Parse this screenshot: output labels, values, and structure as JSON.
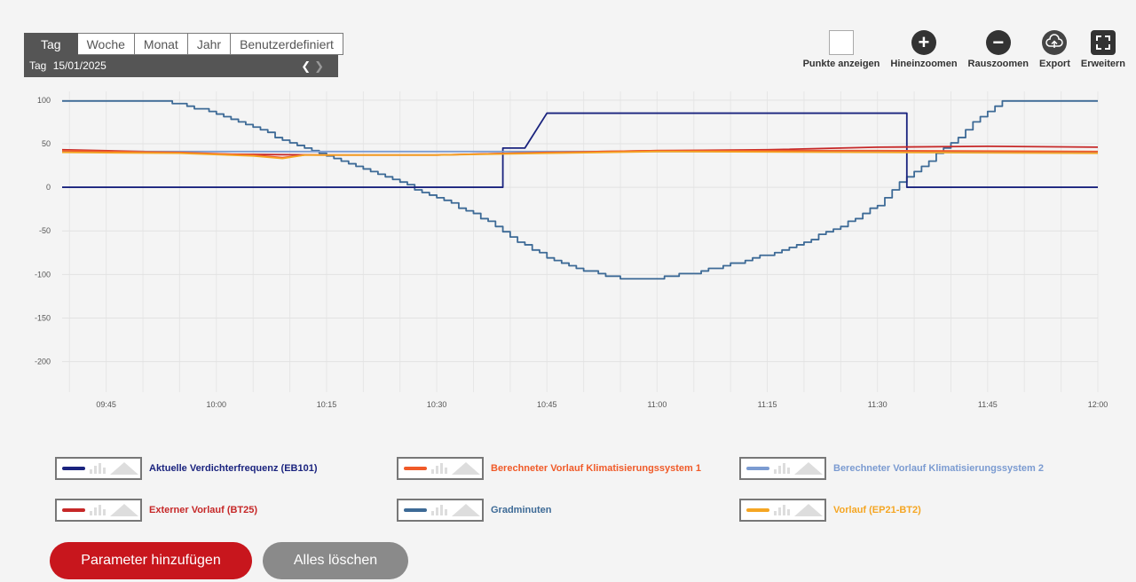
{
  "period": {
    "tabs": [
      {
        "label": "Tag",
        "active": true
      },
      {
        "label": "Woche",
        "active": false
      },
      {
        "label": "Monat",
        "active": false
      },
      {
        "label": "Jahr",
        "active": false
      },
      {
        "label": "Benutzerdefiniert",
        "active": false
      }
    ],
    "range_label": "Tag",
    "range_date": "15/01/2025"
  },
  "toolbar": {
    "show_points": "Punkte anzeigen",
    "zoom_in": "Hineinzoomen",
    "zoom_out": "Rauszoomen",
    "export": "Export",
    "expand": "Erweitern"
  },
  "legend": [
    {
      "label": "Aktuelle Verdichterfrequenz (EB101)",
      "color": "#1a237e"
    },
    {
      "label": "Berechneter Vorlauf Klimatisierungssystem 1",
      "color": "#f05a28"
    },
    {
      "label": "Berechneter Vorlauf Klimatisierungssystem 2",
      "color": "#7b9bd1"
    },
    {
      "label": "Externer Vorlauf (BT25)",
      "color": "#c62828"
    },
    {
      "label": "Gradminuten",
      "color": "#3d6a96"
    },
    {
      "label": "Vorlauf (EP21-BT2)",
      "color": "#f5a623"
    }
  ],
  "buttons": {
    "add": "Parameter hinzufügen",
    "clear": "Alles löschen"
  },
  "chart_data": {
    "type": "line",
    "title": "",
    "xlabel": "",
    "ylabel": "",
    "xlim": [
      "09:39",
      "12:00"
    ],
    "ylim": [
      -235,
      110
    ],
    "y_ticks": [
      100,
      50,
      0,
      -50,
      -100,
      -150,
      -200
    ],
    "x_ticks": [
      "09:45",
      "10:00",
      "10:15",
      "10:30",
      "10:45",
      "11:00",
      "11:15",
      "11:30",
      "11:45",
      "12:00"
    ],
    "grid": true,
    "series": [
      {
        "name": "Gradminuten",
        "color": "#3d6a96",
        "step": true,
        "points": [
          [
            "09:39",
            100
          ],
          [
            "09:51",
            100
          ],
          [
            "09:55",
            95
          ],
          [
            "10:00",
            85
          ],
          [
            "10:05",
            70
          ],
          [
            "10:10",
            50
          ],
          [
            "10:15",
            35
          ],
          [
            "10:20",
            20
          ],
          [
            "10:25",
            5
          ],
          [
            "10:30",
            -12
          ],
          [
            "10:35",
            -30
          ],
          [
            "10:38",
            -45
          ],
          [
            "10:40",
            -58
          ],
          [
            "10:45",
            -80
          ],
          [
            "10:50",
            -95
          ],
          [
            "10:55",
            -105
          ],
          [
            "11:00",
            -104
          ],
          [
            "11:05",
            -98
          ],
          [
            "11:10",
            -88
          ],
          [
            "11:15",
            -77
          ],
          [
            "11:20",
            -62
          ],
          [
            "11:25",
            -45
          ],
          [
            "11:30",
            -20
          ],
          [
            "11:33",
            5
          ],
          [
            "11:36",
            25
          ],
          [
            "11:40",
            50
          ],
          [
            "11:43",
            75
          ],
          [
            "11:47",
            100
          ],
          [
            "12:00",
            100
          ]
        ]
      },
      {
        "name": "Aktuelle Verdichterfrequenz (EB101)",
        "color": "#1a237e",
        "step": false,
        "points": [
          [
            "09:39",
            0
          ],
          [
            "10:39",
            0
          ],
          [
            "10:39",
            45
          ],
          [
            "10:42",
            45
          ],
          [
            "10:45",
            85
          ],
          [
            "11:34",
            85
          ],
          [
            "11:34",
            0
          ],
          [
            "12:00",
            0
          ]
        ]
      },
      {
        "name": "Externer Vorlauf (BT25)",
        "color": "#c62828",
        "step": false,
        "points": [
          [
            "09:39",
            43
          ],
          [
            "09:50",
            41
          ],
          [
            "10:00",
            38
          ],
          [
            "10:15",
            37
          ],
          [
            "10:30",
            37
          ],
          [
            "10:45",
            40
          ],
          [
            "11:00",
            42
          ],
          [
            "11:15",
            43
          ],
          [
            "11:30",
            46
          ],
          [
            "11:45",
            47
          ],
          [
            "12:00",
            46
          ]
        ]
      },
      {
        "name": "Berechneter Vorlauf Klimatisierungssystem 2",
        "color": "#7b9bd1",
        "step": false,
        "points": [
          [
            "09:39",
            41
          ],
          [
            "10:00",
            41
          ],
          [
            "10:30",
            41
          ],
          [
            "11:00",
            41
          ],
          [
            "11:30",
            41
          ],
          [
            "12:00",
            40
          ]
        ]
      },
      {
        "name": "Berechneter Vorlauf Klimatisierungssystem 1",
        "color": "#f05a28",
        "step": false,
        "points": [
          [
            "09:39",
            42
          ],
          [
            "09:55",
            40
          ],
          [
            "10:05",
            37
          ],
          [
            "10:09",
            34
          ],
          [
            "10:12",
            37
          ],
          [
            "10:30",
            37
          ],
          [
            "10:45",
            40
          ],
          [
            "11:00",
            42
          ],
          [
            "11:30",
            42
          ],
          [
            "12:00",
            41
          ]
        ]
      },
      {
        "name": "Vorlauf (EP21-BT2)",
        "color": "#f5a623",
        "step": false,
        "points": [
          [
            "09:39",
            40
          ],
          [
            "09:55",
            39
          ],
          [
            "10:05",
            36
          ],
          [
            "10:09",
            33
          ],
          [
            "10:12",
            37
          ],
          [
            "10:30",
            37
          ],
          [
            "10:45",
            39
          ],
          [
            "11:00",
            41
          ],
          [
            "11:30",
            40
          ],
          [
            "12:00",
            39
          ]
        ]
      }
    ]
  }
}
